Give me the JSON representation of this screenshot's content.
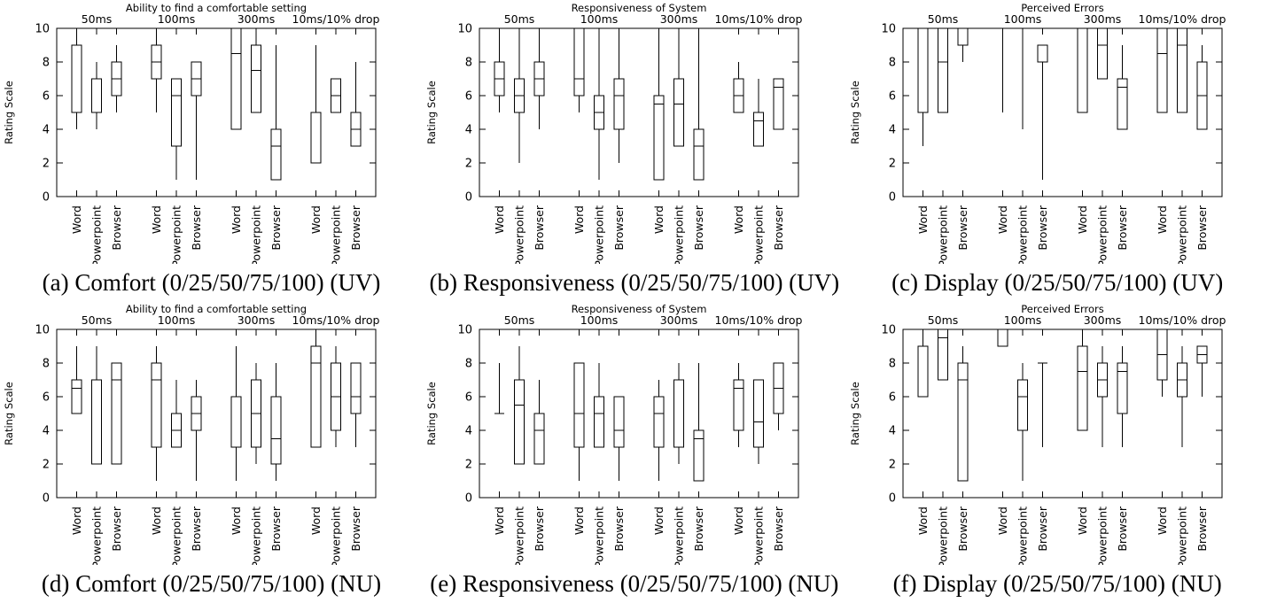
{
  "axis": {
    "ylabel": "Rating Scale",
    "ymin": 0,
    "ymax": 10,
    "ytick_step": 2,
    "yticks": [
      0,
      2,
      4,
      6,
      8,
      10
    ],
    "group_labels": [
      "50ms",
      "100ms",
      "300ms",
      "10ms/10% drop"
    ],
    "categories": [
      "Word",
      "Powerpoint",
      "Browser"
    ]
  },
  "chart_data": [
    {
      "id": "a",
      "type": "boxplot",
      "title": "Ability to find a comfortable setting",
      "caption": "(a) Comfort (0/25/50/75/100) (UV)",
      "ylabel": "Rating Scale",
      "ylim": [
        0,
        10
      ],
      "groups": [
        "50ms",
        "100ms",
        "300ms",
        "10ms/10% drop"
      ],
      "categories": [
        "Word",
        "Powerpoint",
        "Browser"
      ],
      "boxes": [
        {
          "group": "50ms",
          "app": "Word",
          "min": 4,
          "q1": 5,
          "median": 9,
          "q3": 9,
          "max": 10
        },
        {
          "group": "50ms",
          "app": "Powerpoint",
          "min": 4,
          "q1": 5,
          "median": 7,
          "q3": 7,
          "max": 8
        },
        {
          "group": "50ms",
          "app": "Browser",
          "min": 5,
          "q1": 6,
          "median": 7,
          "q3": 8,
          "max": 9
        },
        {
          "group": "100ms",
          "app": "Word",
          "min": 5,
          "q1": 7,
          "median": 8,
          "q3": 9,
          "max": 10
        },
        {
          "group": "100ms",
          "app": "Powerpoint",
          "min": 1,
          "q1": 3,
          "median": 6,
          "q3": 7,
          "max": 7
        },
        {
          "group": "100ms",
          "app": "Browser",
          "min": 1,
          "q1": 6,
          "median": 7,
          "q3": 8,
          "max": 8
        },
        {
          "group": "300ms",
          "app": "Word",
          "min": 4,
          "q1": 4,
          "median": 8.5,
          "q3": 10,
          "max": 10
        },
        {
          "group": "300ms",
          "app": "Powerpoint",
          "min": 5,
          "q1": 5,
          "median": 7.5,
          "q3": 9,
          "max": 10
        },
        {
          "group": "300ms",
          "app": "Browser",
          "min": 1,
          "q1": 1,
          "median": 3,
          "q3": 4,
          "max": 9
        },
        {
          "group": "10ms/10% drop",
          "app": "Word",
          "min": 2,
          "q1": 2,
          "median": 5,
          "q3": 5,
          "max": 9
        },
        {
          "group": "10ms/10% drop",
          "app": "Powerpoint",
          "min": 5,
          "q1": 5,
          "median": 6,
          "q3": 7,
          "max": 7
        },
        {
          "group": "10ms/10% drop",
          "app": "Browser",
          "min": 3,
          "q1": 3,
          "median": 4,
          "q3": 5,
          "max": 8
        }
      ]
    },
    {
      "id": "b",
      "type": "boxplot",
      "title": "Responsiveness of System",
      "caption": "(b) Responsiveness (0/25/50/75/100) (UV)",
      "ylabel": "Rating Scale",
      "ylim": [
        0,
        10
      ],
      "groups": [
        "50ms",
        "100ms",
        "300ms",
        "10ms/10% drop"
      ],
      "categories": [
        "Word",
        "Powerpoint",
        "Browser"
      ],
      "boxes": [
        {
          "group": "50ms",
          "app": "Word",
          "min": 5,
          "q1": 6,
          "median": 7,
          "q3": 8,
          "max": 10
        },
        {
          "group": "50ms",
          "app": "Powerpoint",
          "min": 2,
          "q1": 5,
          "median": 6,
          "q3": 7,
          "max": 10
        },
        {
          "group": "50ms",
          "app": "Browser",
          "min": 4,
          "q1": 6,
          "median": 7,
          "q3": 8,
          "max": 10
        },
        {
          "group": "100ms",
          "app": "Word",
          "min": 5,
          "q1": 6,
          "median": 7,
          "q3": 10,
          "max": 10
        },
        {
          "group": "100ms",
          "app": "Powerpoint",
          "min": 1,
          "q1": 4,
          "median": 5,
          "q3": 6,
          "max": 10
        },
        {
          "group": "100ms",
          "app": "Browser",
          "min": 2,
          "q1": 4,
          "median": 6,
          "q3": 7,
          "max": 10
        },
        {
          "group": "300ms",
          "app": "Word",
          "min": 1,
          "q1": 1,
          "median": 5.5,
          "q3": 6,
          "max": 10
        },
        {
          "group": "300ms",
          "app": "Powerpoint",
          "min": 3,
          "q1": 3,
          "median": 5.5,
          "q3": 7,
          "max": 10
        },
        {
          "group": "300ms",
          "app": "Browser",
          "min": 1,
          "q1": 1,
          "median": 3,
          "q3": 4,
          "max": 10
        },
        {
          "group": "10ms/10% drop",
          "app": "Word",
          "min": 5,
          "q1": 5,
          "median": 6,
          "q3": 7,
          "max": 8
        },
        {
          "group": "10ms/10% drop",
          "app": "Powerpoint",
          "min": 3,
          "q1": 3,
          "median": 4.5,
          "q3": 5,
          "max": 7
        },
        {
          "group": "10ms/10% drop",
          "app": "Browser",
          "min": 4,
          "q1": 4,
          "median": 6.5,
          "q3": 7,
          "max": 7
        }
      ]
    },
    {
      "id": "c",
      "type": "boxplot",
      "title": "Perceived Errors",
      "caption": "(c) Display (0/25/50/75/100) (UV)",
      "ylabel": "Rating Scale",
      "ylim": [
        0,
        10
      ],
      "groups": [
        "50ms",
        "100ms",
        "300ms",
        "10ms/10% drop"
      ],
      "categories": [
        "Word",
        "Powerpoint",
        "Browser"
      ],
      "boxes": [
        {
          "group": "50ms",
          "app": "Word",
          "min": 3,
          "q1": 5,
          "median": 10,
          "q3": 10,
          "max": 10
        },
        {
          "group": "50ms",
          "app": "Powerpoint",
          "min": 5,
          "q1": 5,
          "median": 8,
          "q3": 10,
          "max": 10
        },
        {
          "group": "50ms",
          "app": "Browser",
          "min": 8,
          "q1": 9,
          "median": 10,
          "q3": 10,
          "max": 10
        },
        {
          "group": "100ms",
          "app": "Word",
          "min": 5,
          "q1": 10,
          "median": 10,
          "q3": 10,
          "max": 10
        },
        {
          "group": "100ms",
          "app": "Powerpoint",
          "min": 4,
          "q1": 10,
          "median": 10,
          "q3": 10,
          "max": 10
        },
        {
          "group": "100ms",
          "app": "Browser",
          "min": 1,
          "q1": 8,
          "median": 9,
          "q3": 9,
          "max": 9
        },
        {
          "group": "300ms",
          "app": "Word",
          "min": 5,
          "q1": 5,
          "median": 10,
          "q3": 10,
          "max": 10
        },
        {
          "group": "300ms",
          "app": "Powerpoint",
          "min": 7,
          "q1": 7,
          "median": 9,
          "q3": 10,
          "max": 10
        },
        {
          "group": "300ms",
          "app": "Browser",
          "min": 4,
          "q1": 4,
          "median": 6.5,
          "q3": 7,
          "max": 9
        },
        {
          "group": "10ms/10% drop",
          "app": "Word",
          "min": 5,
          "q1": 5,
          "median": 8.5,
          "q3": 10,
          "max": 10
        },
        {
          "group": "10ms/10% drop",
          "app": "Powerpoint",
          "min": 5,
          "q1": 5,
          "median": 9,
          "q3": 10,
          "max": 10
        },
        {
          "group": "10ms/10% drop",
          "app": "Browser",
          "min": 4,
          "q1": 4,
          "median": 6,
          "q3": 8,
          "max": 9
        }
      ]
    },
    {
      "id": "d",
      "type": "boxplot",
      "title": "Ability to find a comfortable setting",
      "caption": "(d) Comfort (0/25/50/75/100) (NU)",
      "ylabel": "Rating Scale",
      "ylim": [
        0,
        10
      ],
      "groups": [
        "50ms",
        "100ms",
        "300ms",
        "10ms/10% drop"
      ],
      "categories": [
        "Word",
        "Powerpoint",
        "Browser"
      ],
      "boxes": [
        {
          "group": "50ms",
          "app": "Word",
          "min": 5,
          "q1": 5,
          "median": 6.5,
          "q3": 7,
          "max": 9
        },
        {
          "group": "50ms",
          "app": "Powerpoint",
          "min": 2,
          "q1": 2,
          "median": 7,
          "q3": 7,
          "max": 9
        },
        {
          "group": "50ms",
          "app": "Browser",
          "min": 2,
          "q1": 2,
          "median": 7,
          "q3": 8,
          "max": 8
        },
        {
          "group": "100ms",
          "app": "Word",
          "min": 1,
          "q1": 3,
          "median": 7,
          "q3": 8,
          "max": 9
        },
        {
          "group": "100ms",
          "app": "Powerpoint",
          "min": 3,
          "q1": 3,
          "median": 4,
          "q3": 5,
          "max": 7
        },
        {
          "group": "100ms",
          "app": "Browser",
          "min": 1,
          "q1": 4,
          "median": 5,
          "q3": 6,
          "max": 7
        },
        {
          "group": "300ms",
          "app": "Word",
          "min": 1,
          "q1": 3,
          "median": 6,
          "q3": 6,
          "max": 9
        },
        {
          "group": "300ms",
          "app": "Powerpoint",
          "min": 2,
          "q1": 3,
          "median": 5,
          "q3": 7,
          "max": 8
        },
        {
          "group": "300ms",
          "app": "Browser",
          "min": 1,
          "q1": 2,
          "median": 3.5,
          "q3": 6,
          "max": 8
        },
        {
          "group": "10ms/10% drop",
          "app": "Word",
          "min": 3,
          "q1": 3,
          "median": 8,
          "q3": 9,
          "max": 10
        },
        {
          "group": "10ms/10% drop",
          "app": "Powerpoint",
          "min": 3,
          "q1": 4,
          "median": 6,
          "q3": 8,
          "max": 9
        },
        {
          "group": "10ms/10% drop",
          "app": "Browser",
          "min": 3,
          "q1": 5,
          "median": 6,
          "q3": 8,
          "max": 8
        }
      ]
    },
    {
      "id": "e",
      "type": "boxplot",
      "title": "Responsiveness of System",
      "caption": "(e) Responsiveness (0/25/50/75/100) (NU)",
      "ylabel": "Rating Scale",
      "ylim": [
        0,
        10
      ],
      "groups": [
        "50ms",
        "100ms",
        "300ms",
        "10ms/10% drop"
      ],
      "categories": [
        "Word",
        "Powerpoint",
        "Browser"
      ],
      "boxes": [
        {
          "group": "50ms",
          "app": "Word",
          "min": 5,
          "q1": 5,
          "median": 5,
          "q3": 5,
          "max": 8
        },
        {
          "group": "50ms",
          "app": "Powerpoint",
          "min": 2,
          "q1": 2,
          "median": 5.5,
          "q3": 7,
          "max": 9
        },
        {
          "group": "50ms",
          "app": "Browser",
          "min": 2,
          "q1": 2,
          "median": 4,
          "q3": 5,
          "max": 7
        },
        {
          "group": "100ms",
          "app": "Word",
          "min": 1,
          "q1": 3,
          "median": 5,
          "q3": 8,
          "max": 8
        },
        {
          "group": "100ms",
          "app": "Powerpoint",
          "min": 3,
          "q1": 3,
          "median": 5,
          "q3": 6,
          "max": 8
        },
        {
          "group": "100ms",
          "app": "Browser",
          "min": 1,
          "q1": 3,
          "median": 4,
          "q3": 6,
          "max": 6
        },
        {
          "group": "300ms",
          "app": "Word",
          "min": 1,
          "q1": 3,
          "median": 5,
          "q3": 6,
          "max": 7
        },
        {
          "group": "300ms",
          "app": "Powerpoint",
          "min": 2,
          "q1": 3,
          "median": 7,
          "q3": 7,
          "max": 8
        },
        {
          "group": "300ms",
          "app": "Browser",
          "min": 1,
          "q1": 1,
          "median": 3.5,
          "q3": 4,
          "max": 8
        },
        {
          "group": "10ms/10% drop",
          "app": "Word",
          "min": 3,
          "q1": 4,
          "median": 6.5,
          "q3": 7,
          "max": 8
        },
        {
          "group": "10ms/10% drop",
          "app": "Powerpoint",
          "min": 2,
          "q1": 3,
          "median": 4.5,
          "q3": 7,
          "max": 7
        },
        {
          "group": "10ms/10% drop",
          "app": "Browser",
          "min": 4,
          "q1": 5,
          "median": 6.5,
          "q3": 8,
          "max": 8
        }
      ]
    },
    {
      "id": "f",
      "type": "boxplot",
      "title": "Perceived Errors",
      "caption": "(f) Display (0/25/50/75/100) (NU)",
      "ylabel": "Rating Scale",
      "ylim": [
        0,
        10
      ],
      "groups": [
        "50ms",
        "100ms",
        "300ms",
        "10ms/10% drop"
      ],
      "categories": [
        "Word",
        "Powerpoint",
        "Browser"
      ],
      "boxes": [
        {
          "group": "50ms",
          "app": "Word",
          "min": 6,
          "q1": 6,
          "median": 9,
          "q3": 9,
          "max": 10
        },
        {
          "group": "50ms",
          "app": "Powerpoint",
          "min": 7,
          "q1": 7,
          "median": 9.5,
          "q3": 10,
          "max": 10
        },
        {
          "group": "50ms",
          "app": "Browser",
          "min": 1,
          "q1": 1,
          "median": 7,
          "q3": 8,
          "max": 9
        },
        {
          "group": "100ms",
          "app": "Word",
          "min": 9,
          "q1": 9,
          "median": 10,
          "q3": 10,
          "max": 10
        },
        {
          "group": "100ms",
          "app": "Powerpoint",
          "min": 1,
          "q1": 4,
          "median": 6,
          "q3": 7,
          "max": 8
        },
        {
          "group": "100ms",
          "app": "Browser",
          "min": 3,
          "q1": 8,
          "median": 8,
          "q3": 8,
          "max": 8
        },
        {
          "group": "300ms",
          "app": "Word",
          "min": 4,
          "q1": 4,
          "median": 7.5,
          "q3": 9,
          "max": 10
        },
        {
          "group": "300ms",
          "app": "Powerpoint",
          "min": 3,
          "q1": 6,
          "median": 7,
          "q3": 8,
          "max": 9
        },
        {
          "group": "300ms",
          "app": "Browser",
          "min": 3,
          "q1": 5,
          "median": 7.5,
          "q3": 8,
          "max": 9
        },
        {
          "group": "10ms/10% drop",
          "app": "Word",
          "min": 6,
          "q1": 7,
          "median": 8.5,
          "q3": 10,
          "max": 10
        },
        {
          "group": "10ms/10% drop",
          "app": "Powerpoint",
          "min": 3,
          "q1": 6,
          "median": 7,
          "q3": 8,
          "max": 9
        },
        {
          "group": "10ms/10% drop",
          "app": "Browser",
          "min": 6,
          "q1": 8,
          "median": 8.5,
          "q3": 9,
          "max": 9
        }
      ]
    }
  ]
}
